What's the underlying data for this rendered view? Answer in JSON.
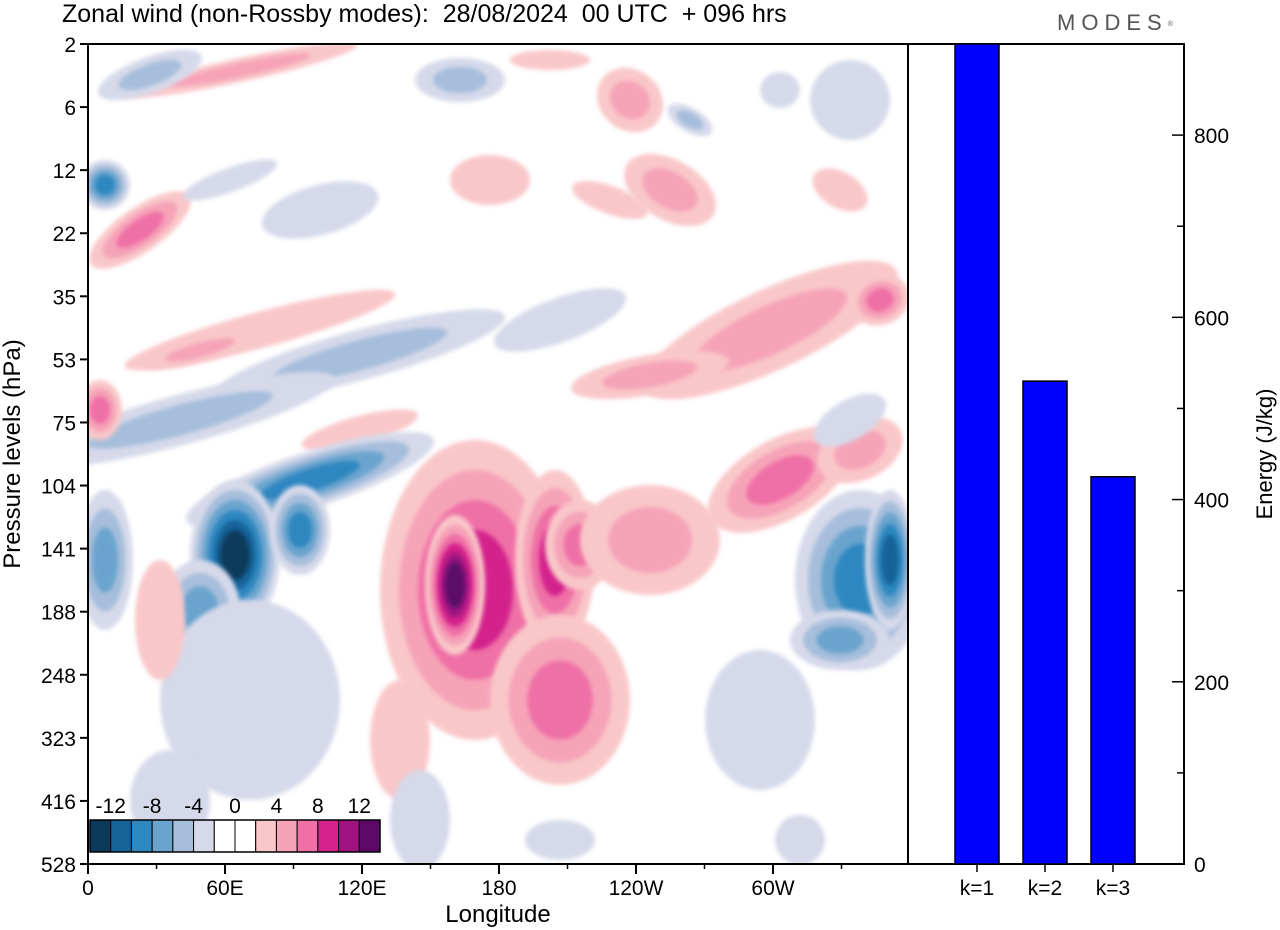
{
  "title": "Zonal wind (non-Rossby modes):  28/08/2024  00 UTC  + 096 hrs",
  "logo": "MODES",
  "logo_mark": "®",
  "chart_data": [
    {
      "type": "heatmap",
      "title": "Zonal wind (non-Rossby modes):  28/08/2024  00 UTC  + 096 hrs",
      "xlabel": "Longitude",
      "ylabel": "Pressure levels (hPa)",
      "x_ticks": [
        "0",
        "60E",
        "120E",
        "180",
        "120W",
        "60W"
      ],
      "y_ticks": [
        "2",
        "6",
        "12",
        "22",
        "35",
        "53",
        "75",
        "104",
        "141",
        "188",
        "248",
        "323",
        "416",
        "528"
      ],
      "colorbar_labels": [
        "-12",
        "-8",
        "-4",
        "0",
        "4",
        "8",
        "12"
      ],
      "colorbar_colors": [
        "#0b3a5c",
        "#14649a",
        "#2d87c0",
        "#6aa4ce",
        "#a6bedb",
        "#d6d9ea",
        "#ffffff",
        "#ffffff",
        "#f9c7c9",
        "#f6a3b8",
        "#ef6fa6",
        "#d4248c",
        "#9e1380",
        "#5b0a68"
      ]
    },
    {
      "type": "bar",
      "categories": [
        "k=1",
        "k=2",
        "k=3"
      ],
      "values": [
        900,
        530,
        425
      ],
      "ylabel": "Energy (J/kg)",
      "ylim": [
        0,
        900
      ],
      "y_ticks": [
        0,
        200,
        400,
        600,
        800
      ],
      "bar_color": "#0000ff"
    }
  ]
}
